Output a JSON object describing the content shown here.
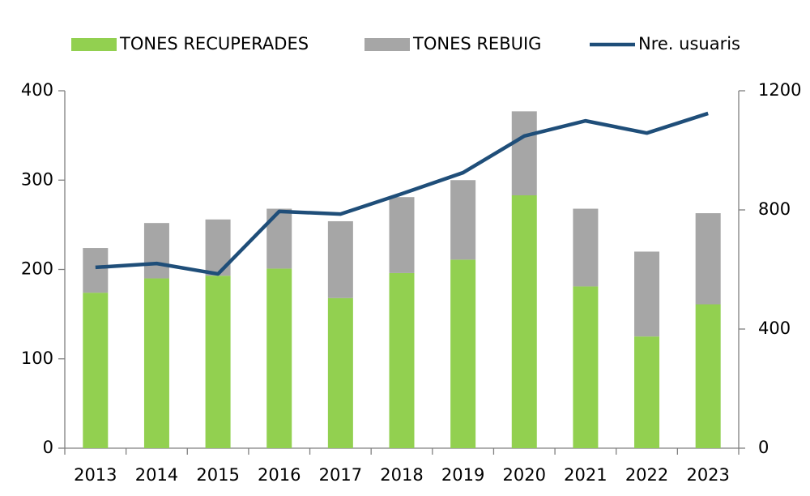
{
  "chart_data": {
    "type": "bar",
    "categories": [
      "2013",
      "2014",
      "2015",
      "2016",
      "2017",
      "2018",
      "2019",
      "2020",
      "2021",
      "2022",
      "2023"
    ],
    "series": [
      {
        "name": "TONES RECUPERADES",
        "color": "#92d050",
        "values": [
          174,
          190,
          193,
          201,
          168,
          196,
          211,
          283,
          181,
          125,
          161
        ]
      },
      {
        "name": "TONES REBUIG",
        "color": "#a6a6a6",
        "values": [
          50,
          62,
          63,
          67,
          86,
          85,
          89,
          94,
          87,
          95,
          102
        ]
      },
      {
        "name": "Nre. usuaris",
        "color": "#1f4e79",
        "type": "line",
        "axis": "y2",
        "values": [
          607,
          620,
          585,
          795,
          786,
          854,
          925,
          1048,
          1099,
          1058,
          1124
        ]
      }
    ],
    "stacked": true,
    "ylim": [
      0,
      400
    ],
    "yticks": [
      0,
      100,
      200,
      300,
      400
    ],
    "y2lim": [
      0,
      1200
    ],
    "y2ticks": [
      0,
      400,
      800,
      1200
    ],
    "legend": "top"
  }
}
